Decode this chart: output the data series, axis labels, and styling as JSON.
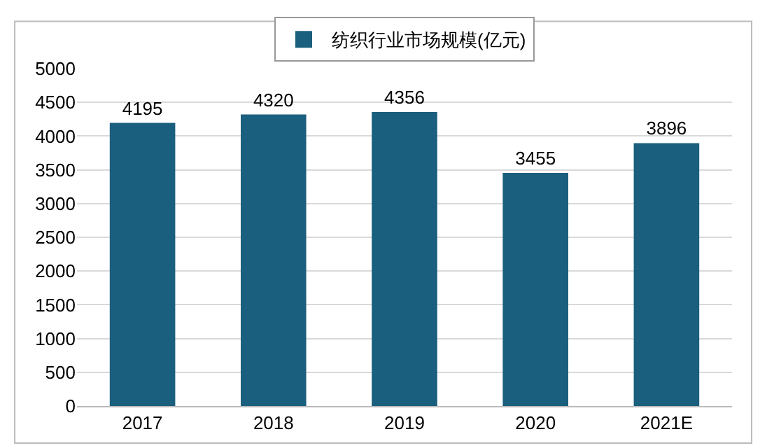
{
  "chart_data": {
    "type": "bar",
    "categories": [
      "2017",
      "2018",
      "2019",
      "2020",
      "2021E"
    ],
    "series": [
      {
        "name": "纺织行业市场规模(亿元)",
        "color": "#1b5f7e",
        "values": [
          4195,
          4320,
          4356,
          3455,
          3896
        ]
      }
    ],
    "ylim": [
      0,
      5000
    ],
    "yticks": [
      0,
      500,
      1000,
      1500,
      2000,
      2500,
      3000,
      3500,
      4000,
      4500,
      5000
    ],
    "grid": "y",
    "legend": "top",
    "data_labels": true
  }
}
